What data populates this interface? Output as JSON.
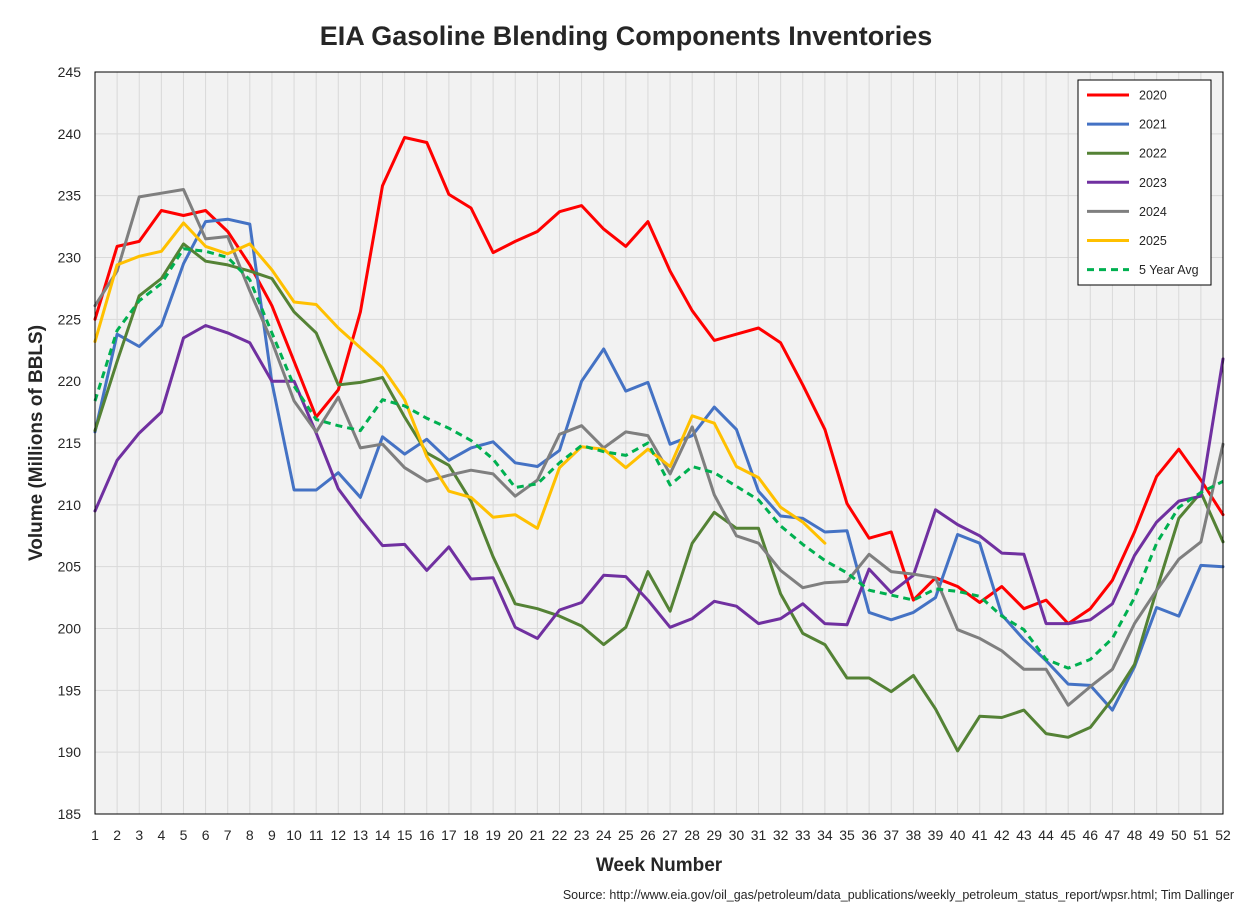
{
  "chart_data": {
    "type": "line",
    "title": "EIA Gasoline Blending Components Inventories",
    "xlabel": "Week Number",
    "ylabel": "Volume (Millions of BBLS)",
    "source": "Source: http://www.eia.gov/oil_gas/petroleum/data_publications/weekly_petroleum_status_report/wpsr.html; Tim Dallinger",
    "xlim": [
      1,
      52
    ],
    "ylim": [
      185,
      245
    ],
    "yticks": [
      185,
      190,
      195,
      200,
      205,
      210,
      215,
      220,
      225,
      230,
      235,
      240,
      245
    ],
    "xticks": [
      1,
      2,
      3,
      4,
      5,
      6,
      7,
      8,
      9,
      10,
      11,
      12,
      13,
      14,
      15,
      16,
      17,
      18,
      19,
      20,
      21,
      22,
      23,
      24,
      25,
      26,
      27,
      28,
      29,
      30,
      31,
      32,
      33,
      34,
      35,
      36,
      37,
      38,
      39,
      40,
      41,
      42,
      43,
      44,
      45,
      46,
      47,
      48,
      49,
      50,
      51,
      52
    ],
    "grid": true,
    "legend_position": "top-right",
    "series": [
      {
        "name": "2020",
        "color": "#ff0000",
        "dashed": false,
        "values": [
          225.0,
          230.9,
          231.3,
          233.8,
          233.4,
          233.8,
          232.1,
          229.4,
          226.1,
          221.6,
          217.1,
          219.3,
          225.6,
          235.8,
          239.7,
          239.3,
          235.1,
          234.0,
          230.4,
          231.3,
          232.1,
          233.7,
          234.2,
          232.3,
          230.9,
          232.9,
          228.9,
          225.7,
          223.3,
          223.8,
          224.3,
          223.1,
          219.7,
          216.1,
          210.1,
          207.3,
          207.8,
          202.3,
          204.1,
          203.4,
          202.1,
          203.4,
          201.6,
          202.3,
          200.4,
          201.6,
          203.9,
          207.8,
          212.3,
          214.5,
          212.0,
          209.2
        ]
      },
      {
        "name": "2021",
        "color": "#4472c4",
        "dashed": false,
        "values": [
          215.9,
          223.8,
          222.8,
          224.5,
          229.5,
          232.9,
          233.1,
          232.7,
          219.9,
          211.2,
          211.2,
          212.6,
          210.6,
          215.5,
          214.1,
          215.3,
          213.6,
          214.6,
          215.1,
          213.4,
          213.1,
          214.4,
          220.0,
          222.6,
          219.2,
          219.9,
          214.9,
          215.6,
          217.9,
          216.1,
          211.1,
          209.1,
          208.9,
          207.8,
          207.9,
          201.3,
          200.7,
          201.3,
          202.5,
          207.6,
          206.9,
          201.1,
          199.1,
          197.4,
          195.5,
          195.4,
          193.4,
          196.9,
          201.7,
          201.0,
          205.1,
          205.0
        ]
      },
      {
        "name": "2022",
        "color": "#548235",
        "dashed": false,
        "values": [
          216.0,
          221.6,
          226.9,
          228.3,
          231.1,
          229.7,
          229.4,
          228.9,
          228.3,
          225.6,
          223.9,
          219.7,
          219.9,
          220.3,
          217.1,
          214.2,
          213.2,
          210.3,
          205.8,
          202.0,
          201.6,
          201.0,
          200.2,
          198.7,
          200.1,
          204.6,
          201.4,
          206.9,
          209.4,
          208.1,
          208.1,
          202.8,
          199.6,
          198.7,
          196.0,
          196.0,
          194.9,
          196.2,
          193.5,
          190.1,
          192.9,
          192.8,
          193.4,
          191.5,
          191.2,
          192.0,
          194.3,
          197.1,
          203.1,
          208.9,
          211.0,
          207.0
        ]
      },
      {
        "name": "2023",
        "color": "#7030a0",
        "dashed": false,
        "values": [
          209.5,
          213.6,
          215.8,
          217.5,
          223.5,
          224.5,
          223.9,
          223.1,
          220.0,
          220.0,
          215.8,
          211.3,
          208.9,
          206.7,
          206.8,
          204.7,
          206.6,
          204.0,
          204.1,
          200.1,
          199.2,
          201.5,
          202.1,
          204.3,
          204.2,
          202.3,
          200.1,
          200.8,
          202.2,
          201.8,
          200.4,
          200.8,
          202.0,
          200.4,
          200.3,
          204.8,
          202.9,
          204.3,
          209.6,
          208.4,
          207.5,
          206.1,
          206.0,
          200.4,
          200.4,
          200.7,
          202.0,
          205.9,
          208.6,
          210.3,
          210.7,
          221.8
        ]
      },
      {
        "name": "2024",
        "color": "#7f7f7f",
        "dashed": false,
        "values": [
          226.1,
          228.9,
          234.9,
          235.2,
          235.5,
          231.5,
          231.7,
          227.3,
          223.2,
          218.4,
          215.9,
          218.7,
          214.6,
          214.9,
          213.0,
          211.9,
          212.4,
          212.8,
          212.5,
          210.7,
          212.0,
          215.7,
          216.4,
          214.6,
          215.9,
          215.6,
          212.5,
          216.3,
          210.8,
          207.5,
          206.9,
          204.7,
          203.3,
          203.7,
          203.8,
          206.0,
          204.6,
          204.4,
          204.1,
          199.9,
          199.2,
          198.2,
          196.7,
          196.7,
          193.8,
          195.3,
          196.7,
          200.4,
          203.1,
          205.6,
          207.0,
          214.9
        ]
      },
      {
        "name": "2025",
        "color": "#ffc000",
        "dashed": false,
        "values": [
          223.2,
          229.4,
          230.1,
          230.5,
          232.8,
          230.9,
          230.3,
          231.1,
          229.0,
          226.4,
          226.2,
          224.3,
          222.7,
          221.1,
          218.5,
          213.9,
          211.1,
          210.6,
          209.0,
          209.2,
          208.1,
          213.0,
          214.7,
          214.5,
          213.0,
          214.5,
          213.1,
          217.2,
          216.6,
          213.1,
          212.2,
          209.8,
          208.6,
          206.9
        ]
      },
      {
        "name": "5 Year Avg",
        "color": "#00b050",
        "dashed": true,
        "values": [
          218.4,
          224.1,
          226.5,
          227.9,
          230.7,
          230.5,
          230.0,
          228.2,
          223.9,
          219.6,
          216.9,
          216.4,
          216.0,
          218.5,
          218.0,
          217.0,
          216.2,
          215.2,
          213.7,
          211.4,
          211.7,
          213.4,
          214.8,
          214.3,
          214.0,
          215.0,
          211.6,
          213.1,
          212.6,
          211.5,
          210.4,
          208.3,
          206.8,
          205.5,
          204.5,
          203.1,
          202.7,
          202.3,
          203.2,
          203.0,
          202.6,
          201.0,
          199.9,
          197.5,
          196.8,
          197.5,
          199.2,
          202.5,
          206.9,
          209.8,
          211.0,
          211.9
        ]
      }
    ]
  }
}
